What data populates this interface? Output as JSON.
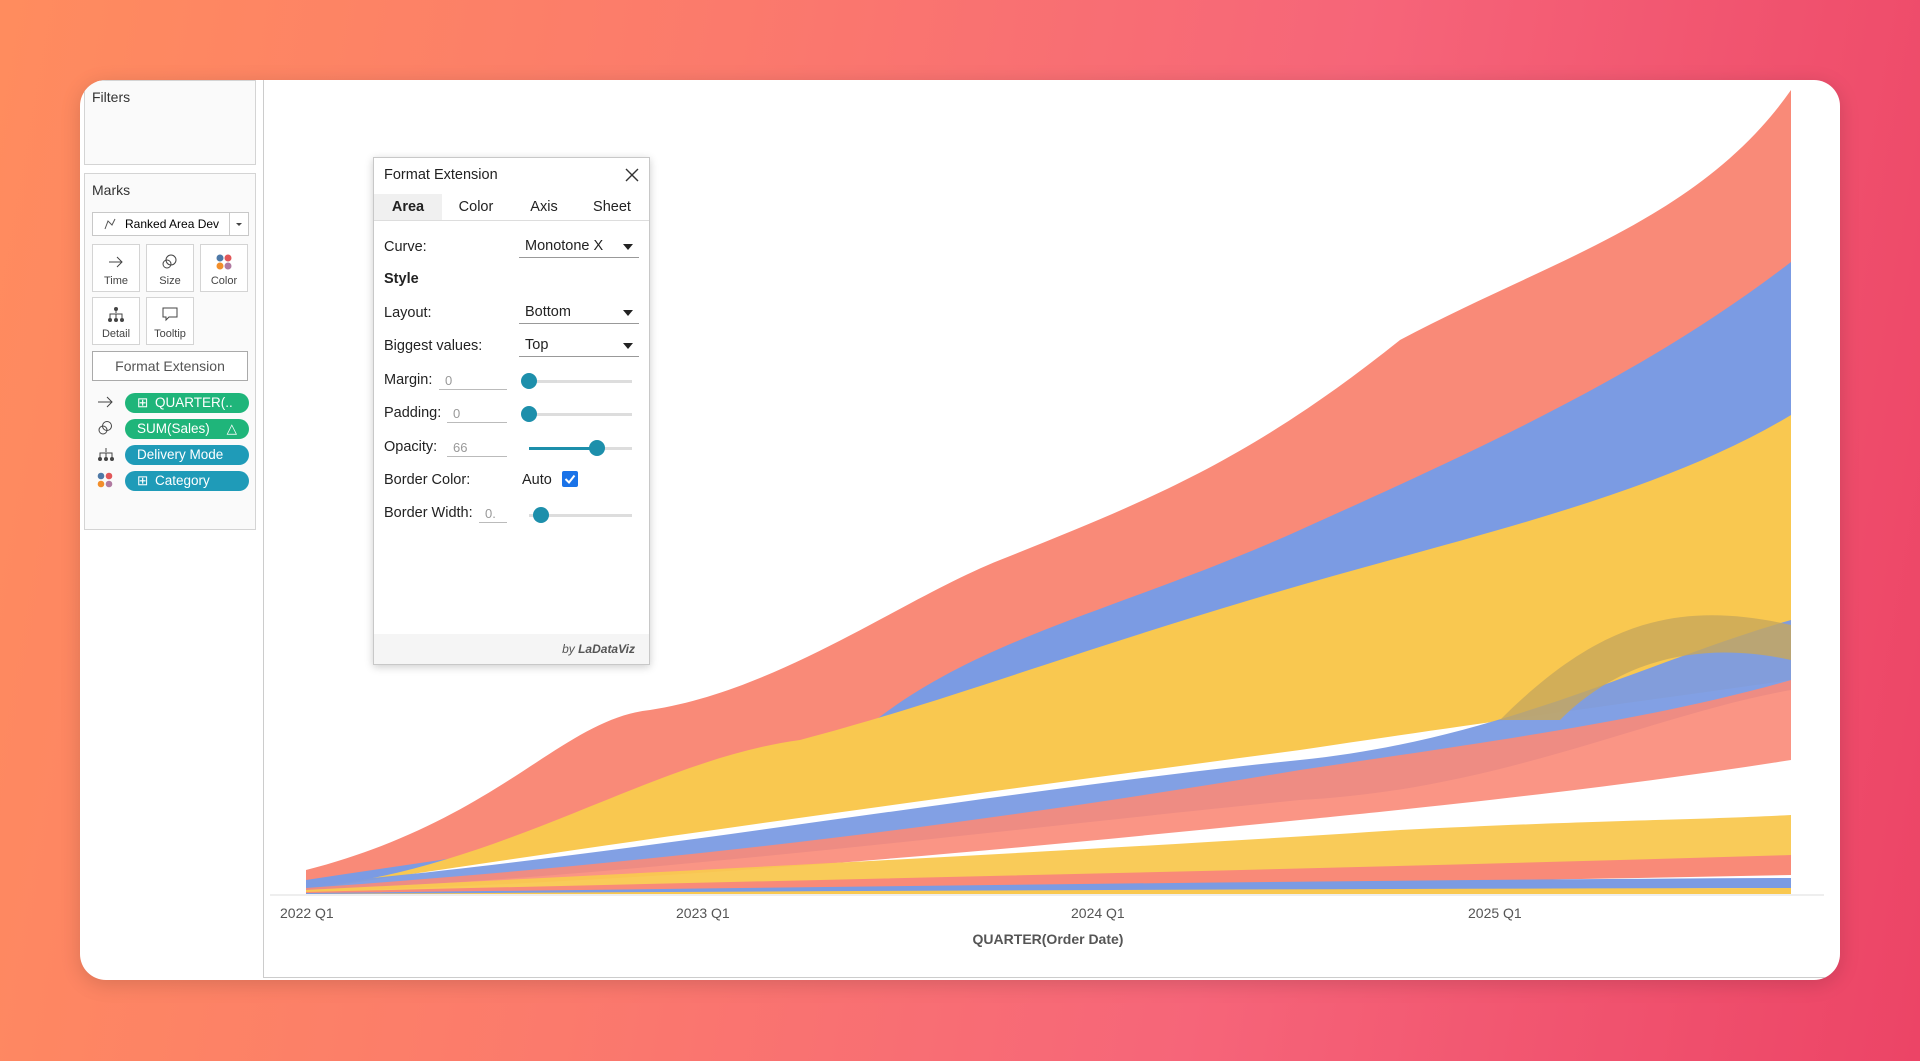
{
  "sidebar": {
    "filters_title": "Filters",
    "marks_title": "Marks",
    "mark_type": "Ranked Area Dev",
    "cards": [
      "Time",
      "Size",
      "Color",
      "Detail",
      "Tooltip"
    ],
    "format_button": "Format Extension",
    "pills": [
      "QUARTER(..",
      "SUM(Sales)",
      "Delivery Mode",
      "Category"
    ]
  },
  "dialog": {
    "title": "Format Extension",
    "tabs": [
      "Area",
      "Color",
      "Axis",
      "Sheet"
    ],
    "curve": {
      "label": "Curve:",
      "value": "Monotone X"
    },
    "section": "Style",
    "layout": {
      "label": "Layout:",
      "value": "Bottom"
    },
    "biggest_values": {
      "label": "Biggest values:",
      "value": "Top"
    },
    "margin": {
      "label": "Margin:",
      "value": 0
    },
    "padding": {
      "label": "Padding:",
      "value": 0
    },
    "opacity": {
      "label": "Opacity:",
      "value": 66
    },
    "border_color": {
      "label": "Border Color:",
      "value": "Auto"
    },
    "border_width": {
      "label": "Border Width:",
      "value": "0."
    },
    "footer": {
      "prefix": "by",
      "brand": "LaDataViz"
    }
  },
  "chart": {
    "x_labels": [
      "2022 Q1",
      "2023 Q1",
      "2024 Q1",
      "2025 Q1"
    ],
    "x_title": "QUARTER(Order Date)"
  }
}
